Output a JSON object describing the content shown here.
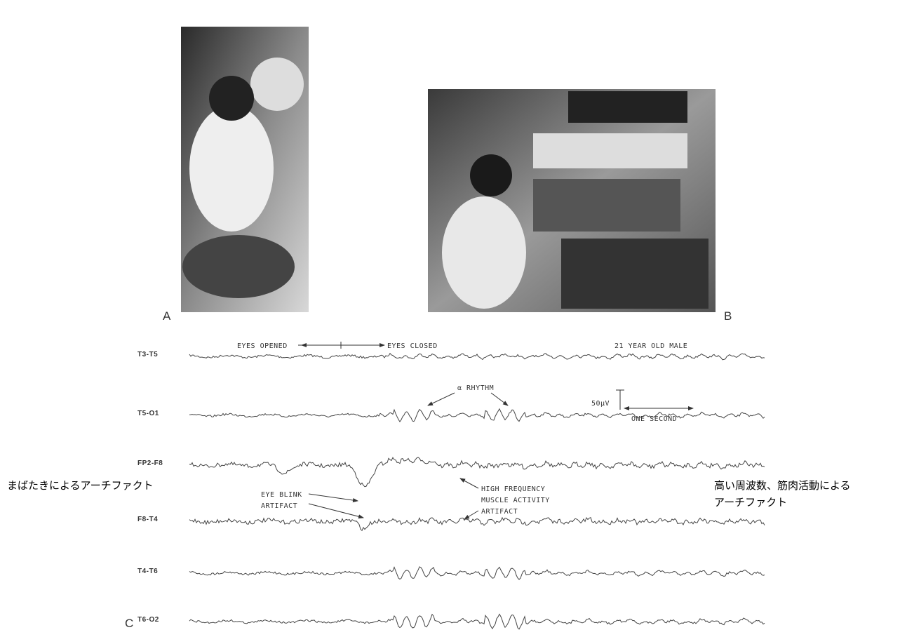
{
  "figure": {
    "panels": {
      "a": "A",
      "b": "B",
      "c": "C"
    },
    "eeg": {
      "channels": [
        "T3-T5",
        "T5-O1",
        "FP2-F8",
        "F8-T4",
        "T4-T6",
        "T6-O2"
      ],
      "eyes_opened": "EYES OPENED",
      "eyes_closed": "EYES CLOSED",
      "subject": "21 YEAR OLD MALE",
      "alpha": "α RHYTHM",
      "amplitude": "50μV",
      "time": "ONE SECOND",
      "blink": [
        "EYE BLINK",
        "ARTIFACT"
      ],
      "muscle": [
        "HIGH FREQUENCY",
        "MUSCLE ACTIVITY",
        "ARTIFACT"
      ]
    },
    "captions": {
      "left": "まばたきによるアーチファクト",
      "right": [
        "高い周波数、筋肉活動による",
        "アーチファクト"
      ]
    }
  }
}
